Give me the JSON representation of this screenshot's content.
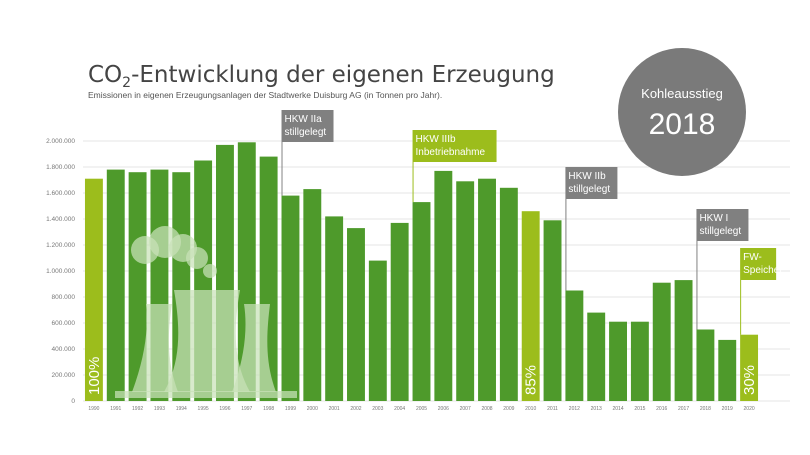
{
  "chart_data": {
    "type": "bar",
    "title_prefix": "CO",
    "title_sub": "2",
    "title_suffix": "-Entwicklung der eigenen Erzeugung",
    "subtitle": "Emissionen in eigenen Erzeugungsanlagen der Stadtwerke Duisburg AG (in Tonnen pro Jahr).",
    "xlabel": "",
    "ylabel": "",
    "ylim": [
      0,
      2000000
    ],
    "grid": true,
    "y_ticks": [
      {
        "value": 0,
        "label": "0"
      },
      {
        "value": 200000,
        "label": "200.000"
      },
      {
        "value": 400000,
        "label": "400.000"
      },
      {
        "value": 600000,
        "label": "600.000"
      },
      {
        "value": 800000,
        "label": "800.000"
      },
      {
        "value": 1000000,
        "label": "1.000.000"
      },
      {
        "value": 1200000,
        "label": "1.200.000"
      },
      {
        "value": 1400000,
        "label": "1.400.000"
      },
      {
        "value": 1600000,
        "label": "1.600.000"
      },
      {
        "value": 1800000,
        "label": "1.800.000"
      },
      {
        "value": 2000000,
        "label": "2.000.000"
      }
    ],
    "categories": [
      "1990",
      "1991",
      "1992",
      "1993",
      "1994",
      "1995",
      "1996",
      "1997",
      "1998",
      "1999",
      "2000",
      "2001",
      "2002",
      "2003",
      "2004",
      "2005",
      "2006",
      "2007",
      "2008",
      "2009",
      "2010",
      "2011",
      "2012",
      "2013",
      "2014",
      "2015",
      "2016",
      "2017",
      "2018",
      "2019",
      "2020"
    ],
    "values": [
      1710000,
      1780000,
      1760000,
      1780000,
      1760000,
      1850000,
      1970000,
      1990000,
      1880000,
      1580000,
      1630000,
      1420000,
      1330000,
      1080000,
      1370000,
      1530000,
      1770000,
      1690000,
      1710000,
      1640000,
      1460000,
      1390000,
      850000,
      680000,
      610000,
      610000,
      910000,
      930000,
      550000,
      470000,
      510000
    ],
    "highlight_indices": [
      0,
      20,
      30
    ],
    "colors": {
      "bar": "#4e9a2b",
      "highlight": "#9cbd1c",
      "grid": "#e6e6e6",
      "annotation_gray": "#808080",
      "annotation_green": "#9cbd1c",
      "badge": "#7a7a7a",
      "plant": "#c9e2b8"
    },
    "percent_labels": [
      {
        "index": 0,
        "text": "100%"
      },
      {
        "index": 20,
        "text": "85%"
      },
      {
        "index": 30,
        "text": "30%"
      }
    ],
    "annotations": [
      {
        "index": 9,
        "lines": [
          "HKW IIa",
          "stillgelegt"
        ],
        "style": "gray"
      },
      {
        "index": 15,
        "lines": [
          "HKW IIIb",
          "Inbetriebnahme"
        ],
        "style": "green"
      },
      {
        "index": 22,
        "lines": [
          "HKW IIb",
          "stillgelegt"
        ],
        "style": "gray"
      },
      {
        "index": 28,
        "lines": [
          "HKW I",
          "stillgelegt"
        ],
        "style": "gray"
      },
      {
        "index": 30,
        "lines": [
          "FW-",
          "Speicher"
        ],
        "style": "green"
      }
    ]
  },
  "badge": {
    "line1": "Kohleausstieg",
    "line2": "2018"
  },
  "icons": {
    "background_illustration": "power-plant-icon"
  }
}
